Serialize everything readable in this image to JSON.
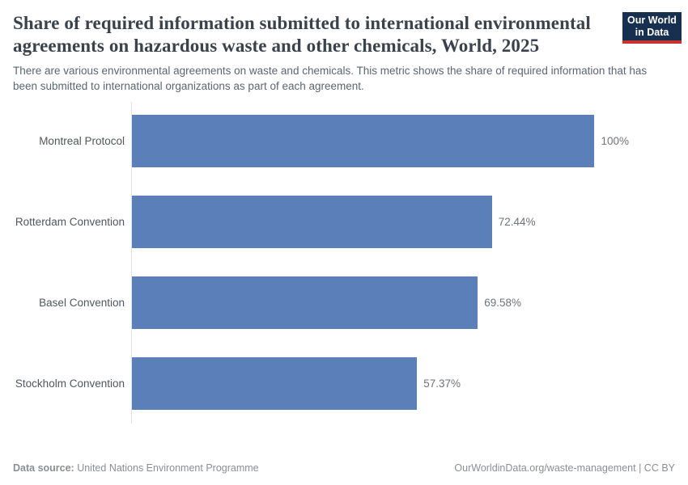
{
  "header": {
    "title": "Share of required information submitted to international environmental agreements on hazardous waste and other chemicals, World, 2025",
    "subtitle": "There are various environmental agreements on waste and chemicals. This metric shows the share of required information that has been submitted to international organizations as part of each agreement.",
    "logo": {
      "line1": "Our World",
      "line2": "in Data",
      "bg_color": "#18304f",
      "accent_color": "#c93230"
    }
  },
  "chart_data": {
    "type": "bar",
    "orientation": "horizontal",
    "title": "Share of required information submitted to international environmental agreements on hazardous waste and other chemicals, World, 2025",
    "categories": [
      "Montreal Protocol",
      "Rotterdam Convention",
      "Basel Convention",
      "Stockholm Convention"
    ],
    "values": [
      100,
      72.44,
      69.58,
      57.37
    ],
    "value_labels": [
      "100%",
      "72.44%",
      "69.58%",
      "57.37%"
    ],
    "xlim": [
      0,
      100
    ],
    "value_suffix": "%",
    "grid": false,
    "legend": "none",
    "bar_color": "#5b7fb9"
  },
  "footer": {
    "datasource_label": "Data source:",
    "datasource_value": " United Nations Environment Programme",
    "link": "OurWorldinData.org/waste-management",
    "separator": " | ",
    "license": "CC BY"
  }
}
